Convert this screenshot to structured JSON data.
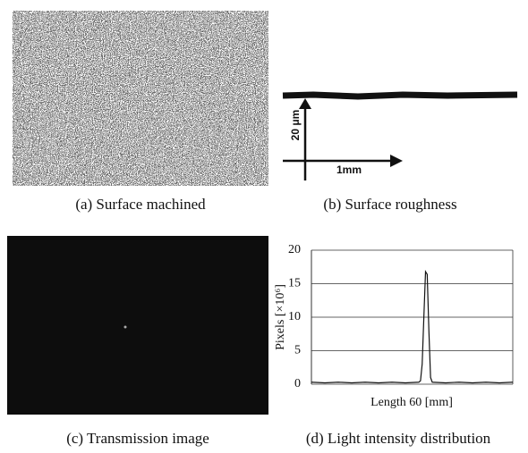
{
  "panels": [
    {
      "caption": "(a) Surface machined"
    },
    {
      "caption": "(b) Surface roughness",
      "annotations": [
        "20 μm",
        "1mm"
      ]
    },
    {
      "caption": "(c) Transmission image"
    },
    {
      "caption": "(d) Light intensity distribution"
    }
  ],
  "chart_data": {
    "type": "line",
    "y_label": "Pixels [×10⁶]",
    "x_label": "Length 60 [mm]",
    "x": [
      0,
      4,
      8,
      12,
      16,
      20,
      24,
      28,
      32,
      32.5,
      33,
      33.5,
      34,
      34.5,
      35,
      35.5,
      36,
      40,
      44,
      48,
      52,
      56,
      60
    ],
    "values": [
      0.3,
      0.2,
      0.3,
      0.2,
      0.3,
      0.2,
      0.3,
      0.2,
      0.3,
      0.5,
      3,
      10,
      16.8,
      16.4,
      8,
      1,
      0.3,
      0.2,
      0.3,
      0.2,
      0.3,
      0.2,
      0.3
    ],
    "color": "#111",
    "xlim": [
      0,
      60
    ],
    "ylim": [
      0,
      20
    ],
    "yticks": [
      0,
      5,
      10,
      15,
      20
    ],
    "grid": true
  }
}
